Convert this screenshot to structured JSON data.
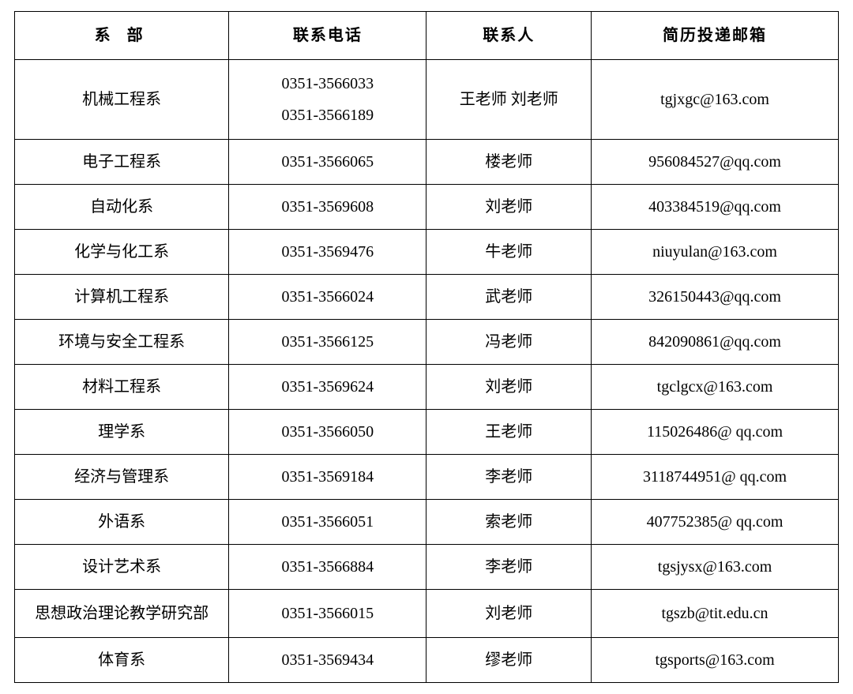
{
  "table": {
    "columns": [
      "系 部",
      "联系电话",
      "联系人",
      "简历投递邮箱"
    ],
    "rows": [
      {
        "dept": "机械工程系",
        "phone": "0351-3566033\n0351-3566189",
        "contact": "王老师 刘老师",
        "email": "tgjxgc@163.com"
      },
      {
        "dept": "电子工程系",
        "phone": "0351-3566065",
        "contact": "楼老师",
        "email": "956084527@qq.com"
      },
      {
        "dept": "自动化系",
        "phone": "0351-3569608",
        "contact": "刘老师",
        "email": "403384519@qq.com"
      },
      {
        "dept": "化学与化工系",
        "phone": "0351-3569476",
        "contact": "牛老师",
        "email": "niuyulan@163.com"
      },
      {
        "dept": "计算机工程系",
        "phone": "0351-3566024",
        "contact": "武老师",
        "email": "326150443@qq.com"
      },
      {
        "dept": "环境与安全工程系",
        "phone": "0351-3566125",
        "contact": "冯老师",
        "email": "842090861@qq.com"
      },
      {
        "dept": "材料工程系",
        "phone": "0351-3569624",
        "contact": "刘老师",
        "email": "tgclgcx@163.com"
      },
      {
        "dept": "理学系",
        "phone": "0351-3566050",
        "contact": "王老师",
        "email": "115026486@  qq.com"
      },
      {
        "dept": "经济与管理系",
        "phone": "0351-3569184",
        "contact": "李老师",
        "email": "3118744951@  qq.com"
      },
      {
        "dept": "外语系",
        "phone": "0351-3566051",
        "contact": "索老师",
        "email": "407752385@  qq.com"
      },
      {
        "dept": "设计艺术系",
        "phone": "0351-3566884",
        "contact": "李老师",
        "email": "tgsjysx@163.com"
      },
      {
        "dept": "思想政治理论教学研究部",
        "phone": "0351-3566015",
        "contact": "刘老师",
        "email": "tgszb@tit.edu.cn"
      },
      {
        "dept": "体育系",
        "phone": "0351-3569434",
        "contact": "缪老师",
        "email": "tgsports@163.com"
      }
    ],
    "border_color": "#000000",
    "background_color": "#ffffff",
    "text_color": "#000000",
    "header_fontsize": 20,
    "cell_fontsize": 20,
    "font_family": "SimSun"
  }
}
